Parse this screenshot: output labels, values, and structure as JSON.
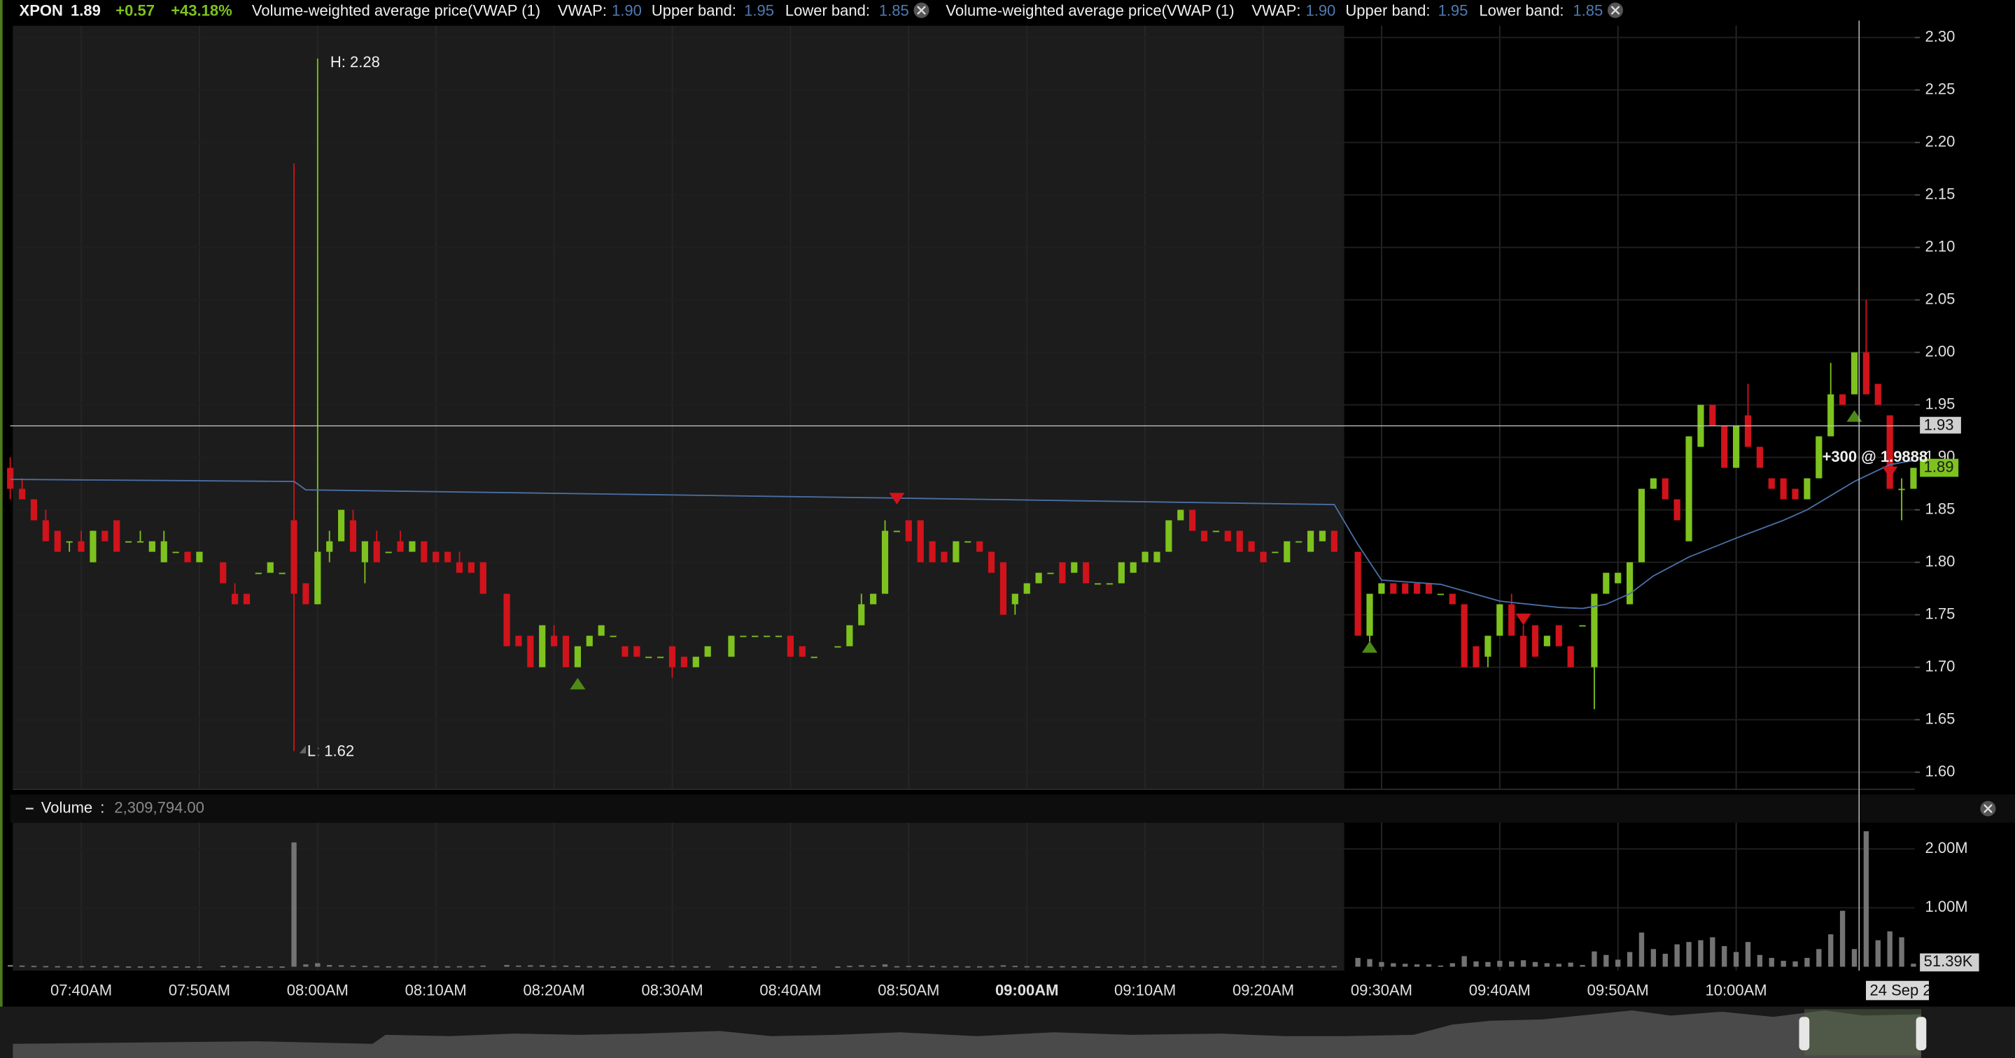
{
  "header": {
    "symbol": "XPON",
    "price": "1.89",
    "change": "+0.57",
    "change_pct": "+43.18%",
    "studies": [
      {
        "name": "Volume-weighted average price(VWAP  (1)",
        "vwap_label": "VWAP:",
        "vwap": "1.90",
        "upper_label": "Upper band:",
        "upper": "1.95",
        "lower_label": "Lower band:",
        "lower": "1.85"
      },
      {
        "name": "Volume-weighted average price(VWAP  (1)",
        "vwap_label": "VWAP:",
        "vwap": "1.90",
        "upper_label": "Upper band:",
        "upper": "1.95",
        "lower_label": "Lower band:",
        "lower": "1.85"
      }
    ]
  },
  "chart_data": {
    "type": "candlestick",
    "x": [
      454,
      455,
      456,
      457,
      458,
      459,
      460,
      461,
      462,
      463,
      464,
      465,
      466,
      467,
      468,
      469,
      470,
      472,
      473,
      474,
      475,
      476,
      477,
      478,
      479,
      480,
      481,
      482,
      483,
      484,
      485,
      486,
      487,
      488,
      489,
      490,
      491,
      492,
      493,
      494,
      496,
      497,
      498,
      499,
      500,
      501,
      502,
      503,
      504,
      505,
      506,
      507,
      508,
      509,
      510,
      511,
      512,
      513,
      515,
      516,
      517,
      518,
      519,
      520,
      521,
      522,
      524,
      525,
      526,
      527,
      528,
      529,
      530,
      531,
      532,
      533,
      534,
      535,
      536,
      537,
      538,
      539,
      540,
      541,
      542,
      543,
      544,
      545,
      546,
      547,
      548,
      549,
      550,
      551,
      552,
      553,
      554,
      555,
      556,
      557,
      558,
      559,
      560,
      561,
      562,
      563,
      564,
      565,
      566,
      568,
      569,
      570,
      571,
      572,
      573,
      574,
      575,
      576,
      577,
      578,
      579,
      580,
      581,
      582,
      583,
      584,
      585,
      586,
      587,
      588,
      589,
      590,
      591,
      592,
      593,
      594,
      595,
      596,
      597,
      598,
      599,
      600,
      601,
      602,
      603,
      604,
      605,
      606,
      607,
      608,
      609,
      610,
      611,
      612,
      613,
      614,
      615
    ],
    "open": [
      1.89,
      1.87,
      1.86,
      1.84,
      1.83,
      1.82,
      1.82,
      1.8,
      1.83,
      1.84,
      1.82,
      1.82,
      1.81,
      1.8,
      1.81,
      1.81,
      1.8,
      1.8,
      1.77,
      1.77,
      1.79,
      1.79,
      1.79,
      1.84,
      1.78,
      1.76,
      1.81,
      1.82,
      1.84,
      1.8,
      1.82,
      1.81,
      1.82,
      1.81,
      1.82,
      1.81,
      1.81,
      1.8,
      1.8,
      1.8,
      1.77,
      1.73,
      1.73,
      1.7,
      1.73,
      1.73,
      1.7,
      1.72,
      1.73,
      1.73,
      1.72,
      1.72,
      1.71,
      1.71,
      1.72,
      1.71,
      1.7,
      1.71,
      1.71,
      1.73,
      1.73,
      1.73,
      1.73,
      1.73,
      1.72,
      1.71,
      1.72,
      1.72,
      1.74,
      1.76,
      1.77,
      1.83,
      1.84,
      1.84,
      1.82,
      1.81,
      1.8,
      1.82,
      1.82,
      1.81,
      1.8,
      1.76,
      1.77,
      1.78,
      1.79,
      1.8,
      1.79,
      1.8,
      1.78,
      1.78,
      1.78,
      1.79,
      1.8,
      1.8,
      1.81,
      1.84,
      1.85,
      1.83,
      1.83,
      1.83,
      1.83,
      1.82,
      1.81,
      1.81,
      1.8,
      1.82,
      1.81,
      1.82,
      1.83,
      1.81,
      1.73,
      1.77,
      1.78,
      1.78,
      1.78,
      1.78,
      1.77,
      1.77,
      1.76,
      1.72,
      1.71,
      1.73,
      1.76,
      1.73,
      1.74,
      1.72,
      1.74,
      1.72,
      1.74,
      1.7,
      1.77,
      1.78,
      1.76,
      1.8,
      1.87,
      1.88,
      1.86,
      1.82,
      1.91,
      1.95,
      1.93,
      1.89,
      1.94,
      1.91,
      1.88,
      1.88,
      1.87,
      1.86,
      1.88,
      1.92,
      1.96,
      1.96,
      2.0,
      1.97,
      1.94,
      1.87,
      1.87
    ],
    "high": [
      1.9,
      1.88,
      1.86,
      1.85,
      1.83,
      1.82,
      1.83,
      1.83,
      1.83,
      1.84,
      1.82,
      1.83,
      1.82,
      1.83,
      1.81,
      1.81,
      1.81,
      1.8,
      1.78,
      1.77,
      1.79,
      1.8,
      1.79,
      2.18,
      1.78,
      2.28,
      1.83,
      1.85,
      1.85,
      1.82,
      1.83,
      1.81,
      1.83,
      1.82,
      1.82,
      1.81,
      1.81,
      1.81,
      1.8,
      1.8,
      1.77,
      1.73,
      1.73,
      1.74,
      1.74,
      1.73,
      1.72,
      1.73,
      1.74,
      1.73,
      1.72,
      1.72,
      1.71,
      1.71,
      1.72,
      1.71,
      1.71,
      1.72,
      1.73,
      1.73,
      1.73,
      1.73,
      1.73,
      1.73,
      1.72,
      1.71,
      1.72,
      1.74,
      1.77,
      1.77,
      1.84,
      1.83,
      1.84,
      1.84,
      1.82,
      1.81,
      1.82,
      1.82,
      1.82,
      1.81,
      1.8,
      1.77,
      1.78,
      1.79,
      1.79,
      1.8,
      1.8,
      1.8,
      1.78,
      1.78,
      1.8,
      1.8,
      1.81,
      1.81,
      1.84,
      1.85,
      1.85,
      1.83,
      1.83,
      1.83,
      1.83,
      1.82,
      1.81,
      1.81,
      1.82,
      1.82,
      1.83,
      1.83,
      1.83,
      1.81,
      1.77,
      1.78,
      1.78,
      1.78,
      1.78,
      1.78,
      1.77,
      1.77,
      1.76,
      1.72,
      1.73,
      1.76,
      1.77,
      1.74,
      1.74,
      1.73,
      1.74,
      1.72,
      1.74,
      1.77,
      1.79,
      1.79,
      1.8,
      1.87,
      1.88,
      1.88,
      1.86,
      1.92,
      1.95,
      1.95,
      1.93,
      1.93,
      1.97,
      1.91,
      1.88,
      1.88,
      1.87,
      1.88,
      1.92,
      1.99,
      1.96,
      2.0,
      2.05,
      1.97,
      1.94,
      1.88,
      1.89
    ],
    "low": [
      1.86,
      1.86,
      1.84,
      1.82,
      1.81,
      1.81,
      1.81,
      1.8,
      1.82,
      1.81,
      1.82,
      1.82,
      1.81,
      1.8,
      1.81,
      1.8,
      1.8,
      1.78,
      1.76,
      1.76,
      1.79,
      1.79,
      1.79,
      1.62,
      1.76,
      1.76,
      1.8,
      1.82,
      1.81,
      1.78,
      1.8,
      1.81,
      1.81,
      1.81,
      1.8,
      1.8,
      1.8,
      1.79,
      1.79,
      1.77,
      1.72,
      1.72,
      1.7,
      1.7,
      1.72,
      1.7,
      1.7,
      1.72,
      1.73,
      1.73,
      1.71,
      1.71,
      1.71,
      1.71,
      1.69,
      1.7,
      1.7,
      1.71,
      1.71,
      1.73,
      1.73,
      1.73,
      1.73,
      1.71,
      1.71,
      1.71,
      1.72,
      1.72,
      1.74,
      1.76,
      1.77,
      1.83,
      1.82,
      1.8,
      1.8,
      1.8,
      1.8,
      1.82,
      1.81,
      1.79,
      1.75,
      1.75,
      1.77,
      1.78,
      1.79,
      1.78,
      1.79,
      1.78,
      1.78,
      1.78,
      1.78,
      1.79,
      1.8,
      1.8,
      1.81,
      1.84,
      1.83,
      1.82,
      1.83,
      1.82,
      1.81,
      1.81,
      1.8,
      1.81,
      1.8,
      1.82,
      1.81,
      1.82,
      1.81,
      1.73,
      1.72,
      1.77,
      1.77,
      1.77,
      1.77,
      1.77,
      1.77,
      1.76,
      1.7,
      1.7,
      1.7,
      1.73,
      1.73,
      1.7,
      1.71,
      1.72,
      1.72,
      1.7,
      1.74,
      1.66,
      1.77,
      1.78,
      1.76,
      1.8,
      1.87,
      1.86,
      1.84,
      1.82,
      1.91,
      1.93,
      1.89,
      1.89,
      1.91,
      1.89,
      1.87,
      1.86,
      1.86,
      1.86,
      1.88,
      1.92,
      1.95,
      1.96,
      1.96,
      1.95,
      1.87,
      1.84,
      1.87
    ],
    "close": [
      1.87,
      1.86,
      1.84,
      1.82,
      1.81,
      1.82,
      1.81,
      1.83,
      1.82,
      1.81,
      1.82,
      1.82,
      1.82,
      1.82,
      1.81,
      1.8,
      1.81,
      1.78,
      1.76,
      1.76,
      1.79,
      1.8,
      1.79,
      1.77,
      1.76,
      1.81,
      1.82,
      1.85,
      1.81,
      1.82,
      1.8,
      1.81,
      1.81,
      1.82,
      1.8,
      1.8,
      1.8,
      1.79,
      1.79,
      1.77,
      1.72,
      1.72,
      1.7,
      1.74,
      1.72,
      1.7,
      1.72,
      1.73,
      1.74,
      1.73,
      1.71,
      1.71,
      1.71,
      1.71,
      1.7,
      1.7,
      1.71,
      1.72,
      1.73,
      1.73,
      1.73,
      1.73,
      1.73,
      1.71,
      1.71,
      1.71,
      1.72,
      1.74,
      1.76,
      1.77,
      1.83,
      1.83,
      1.82,
      1.8,
      1.8,
      1.8,
      1.82,
      1.82,
      1.81,
      1.79,
      1.75,
      1.77,
      1.78,
      1.79,
      1.79,
      1.78,
      1.8,
      1.78,
      1.78,
      1.78,
      1.8,
      1.8,
      1.81,
      1.81,
      1.84,
      1.85,
      1.83,
      1.82,
      1.83,
      1.82,
      1.81,
      1.81,
      1.8,
      1.81,
      1.82,
      1.82,
      1.83,
      1.83,
      1.81,
      1.73,
      1.77,
      1.78,
      1.77,
      1.77,
      1.77,
      1.77,
      1.77,
      1.76,
      1.7,
      1.7,
      1.73,
      1.76,
      1.73,
      1.7,
      1.71,
      1.73,
      1.72,
      1.7,
      1.74,
      1.77,
      1.79,
      1.79,
      1.8,
      1.87,
      1.88,
      1.86,
      1.84,
      1.92,
      1.95,
      1.93,
      1.89,
      1.93,
      1.91,
      1.89,
      1.87,
      1.86,
      1.86,
      1.88,
      1.92,
      1.96,
      1.95,
      2.0,
      1.96,
      1.95,
      1.87,
      1.87,
      1.89
    ],
    "xlim": [
      454,
      615
    ],
    "xticks": [
      {
        "value": 460,
        "label": "07:40AM"
      },
      {
        "value": 470,
        "label": "07:50AM"
      },
      {
        "value": 480,
        "label": "08:00AM"
      },
      {
        "value": 490,
        "label": "08:10AM"
      },
      {
        "value": 500,
        "label": "08:20AM"
      },
      {
        "value": 510,
        "label": "08:30AM"
      },
      {
        "value": 520,
        "label": "08:40AM"
      },
      {
        "value": 530,
        "label": "08:50AM"
      },
      {
        "value": 540,
        "label": "09:00AM",
        "bold": true
      },
      {
        "value": 550,
        "label": "09:10AM"
      },
      {
        "value": 560,
        "label": "09:20AM"
      },
      {
        "value": 570,
        "label": "09:30AM"
      },
      {
        "value": 580,
        "label": "09:40AM"
      },
      {
        "value": 590,
        "label": "09:50AM"
      },
      {
        "value": 600,
        "label": "10:00AM"
      }
    ],
    "ylim": [
      1.58,
      2.31
    ],
    "yticks": [
      {
        "value": 2.3,
        "label": "2.30"
      },
      2.25,
      {
        "value": 2.2,
        "label": "2.20"
      },
      2.15,
      {
        "value": 2.1,
        "label": "2.10"
      },
      2.05,
      {
        "value": 2.0,
        "label": "2.00"
      },
      1.95,
      {
        "value": 1.9,
        "label": "1.90"
      },
      1.85,
      {
        "value": 1.8,
        "label": "1.80"
      },
      1.75,
      {
        "value": 1.7,
        "label": "1.70"
      },
      1.65,
      {
        "value": 1.6,
        "label": "1.60"
      }
    ],
    "grid": true,
    "colors": {
      "up": "#7dc21e",
      "down": "#d1131b",
      "vwap": "#4a6fa5",
      "volume": "#737373"
    },
    "vwap": {
      "x": [
        454,
        478,
        479,
        530,
        566,
        568,
        570,
        575,
        580,
        585,
        587,
        589,
        591,
        593,
        596,
        600,
        604,
        606,
        610,
        613,
        615
      ],
      "values": [
        1.879,
        1.877,
        1.869,
        1.861,
        1.855,
        1.817,
        1.783,
        1.779,
        1.763,
        1.757,
        1.756,
        1.76,
        1.77,
        1.787,
        1.805,
        1.823,
        1.84,
        1.85,
        1.877,
        1.893,
        1.897
      ]
    },
    "volume": {
      "title": "Volume",
      "total": "2,309,794.00",
      "values": [
        30000,
        20000,
        15000,
        12000,
        10000,
        8000,
        10000,
        15000,
        8000,
        12000,
        5000,
        5000,
        6000,
        10000,
        5000,
        6000,
        5000,
        15000,
        12000,
        10000,
        4000,
        6000,
        4000,
        2110000,
        40000,
        60000,
        30000,
        25000,
        20000,
        15000,
        12000,
        8000,
        10000,
        8000,
        10000,
        8000,
        8000,
        10000,
        10000,
        20000,
        30000,
        20000,
        25000,
        25000,
        15000,
        20000,
        15000,
        10000,
        10000,
        5000,
        10000,
        8000,
        5000,
        5000,
        15000,
        10000,
        8000,
        8000,
        10000,
        5000,
        5000,
        5000,
        5000,
        10000,
        8000,
        5000,
        5000,
        15000,
        25000,
        20000,
        40000,
        10000,
        15000,
        20000,
        15000,
        10000,
        12000,
        8000,
        8000,
        12000,
        25000,
        15000,
        10000,
        10000,
        5000,
        10000,
        8000,
        10000,
        5000,
        5000,
        10000,
        8000,
        8000,
        8000,
        15000,
        12000,
        12000,
        10000,
        5000,
        8000,
        10000,
        8000,
        8000,
        5000,
        10000,
        5000,
        10000,
        10000,
        12000,
        150000,
        130000,
        80000,
        60000,
        50000,
        40000,
        40000,
        20000,
        60000,
        180000,
        90000,
        80000,
        100000,
        90000,
        110000,
        80000,
        60000,
        50000,
        70000,
        30000,
        260000,
        200000,
        120000,
        250000,
        580000,
        300000,
        220000,
        380000,
        420000,
        450000,
        500000,
        350000,
        250000,
        420000,
        200000,
        150000,
        100000,
        90000,
        150000,
        300000,
        550000,
        950000,
        300000,
        2300000,
        450000,
        600000,
        500000,
        51390
      ],
      "ylim": [
        0,
        2400000
      ],
      "yticks": [
        {
          "value": 1000000,
          "label": "1.00M"
        },
        {
          "value": 2000000,
          "label": "2.00M"
        }
      ],
      "last": {
        "value": 51390,
        "label": "51.39K"
      }
    },
    "crosshair": {
      "x": 610.4,
      "y": 1.93
    },
    "last_price": 1.89,
    "annotations": {
      "high": "H: 2.28",
      "low": "L: 1.62",
      "trade": "+300 @ 1.9888",
      "date": "24 Sep 2"
    },
    "signals": [
      {
        "x": 502,
        "y": 1.685,
        "dir": "up"
      },
      {
        "x": 569,
        "y": 1.72,
        "dir": "up"
      },
      {
        "x": 610,
        "y": 1.94,
        "dir": "up"
      },
      {
        "x": 529,
        "y": 1.86,
        "dir": "down"
      },
      {
        "x": 582,
        "y": 1.745,
        "dir": "down"
      },
      {
        "x": 613,
        "y": 1.885,
        "dir": "down"
      }
    ]
  }
}
